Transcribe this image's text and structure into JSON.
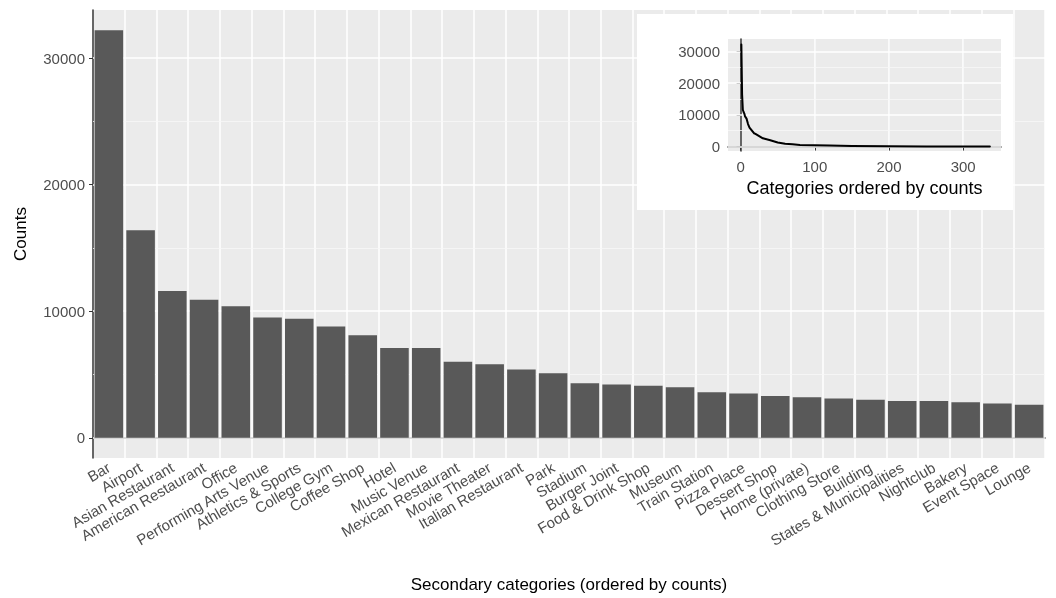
{
  "chart_data": [
    {
      "type": "bar",
      "xlabel": "Secondary categories (ordered by counts)",
      "ylabel": "Counts",
      "categories": [
        "Bar",
        "Airport",
        "Asian Restaurant",
        "American Restaurant",
        "Office",
        "Performing Arts Venue",
        "Athletics & Sports",
        "College Gym",
        "Coffee Shop",
        "Hotel",
        "Music Venue",
        "Mexican Restaurant",
        "Movie Theater",
        "Italian Restaurant",
        "Park",
        "Stadium",
        "Burger Joint",
        "Food & Drink Shop",
        "Museum",
        "Train Station",
        "Pizza Place",
        "Dessert Shop",
        "Home (private)",
        "Clothing Store",
        "Building",
        "States & Municipalities",
        "Nightclub",
        "Bakery",
        "Event Space",
        "Lounge"
      ],
      "values": [
        32200,
        16400,
        11600,
        10900,
        10400,
        9500,
        9400,
        8800,
        8100,
        7100,
        7100,
        6000,
        5800,
        5400,
        5100,
        4300,
        4200,
        4100,
        4000,
        3600,
        3500,
        3300,
        3200,
        3100,
        3000,
        2900,
        2900,
        2800,
        2700,
        2600
      ],
      "color": "#595959",
      "ylim": [
        -1600,
        33800
      ],
      "yticks": [
        0,
        10000,
        20000,
        30000
      ],
      "grid": true
    },
    {
      "type": "line",
      "xlabel": "Categories ordered by counts",
      "color": "#000000",
      "x": [
        1,
        2,
        3,
        4,
        5,
        6,
        8,
        10,
        12,
        15,
        18,
        20,
        25,
        30,
        40,
        50,
        60,
        70,
        80,
        100,
        120,
        150,
        200,
        250,
        300,
        336
      ],
      "values": [
        32200,
        16400,
        11600,
        10900,
        10400,
        9500,
        8800,
        7100,
        6000,
        5100,
        4200,
        4000,
        3300,
        2600,
        2000,
        1300,
        900,
        700,
        500,
        400,
        300,
        200,
        100,
        0,
        0,
        0
      ],
      "xlim": [
        -17,
        351
      ],
      "xticks": [
        0,
        100,
        200,
        300
      ],
      "ylim": [
        -1400,
        33900
      ],
      "yticks": [
        0,
        10000,
        20000,
        30000
      ],
      "grid": true,
      "line_style": "solid"
    }
  ]
}
